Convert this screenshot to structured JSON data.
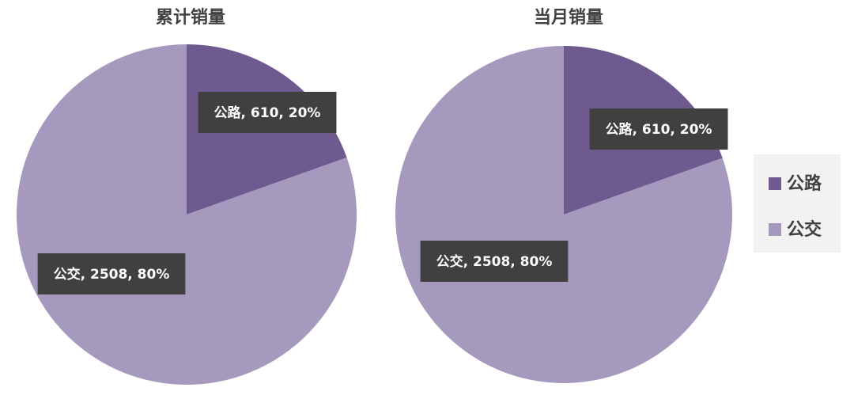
{
  "chart_data": [
    {
      "type": "pie",
      "title": "累计销量",
      "categories": [
        "公路",
        "公交"
      ],
      "values": [
        610,
        2508
      ],
      "value_labels": [
        "公路, 610, 20%",
        "公交, 2508, 80%"
      ],
      "colors": [
        "#6e5a8f",
        "#a699be"
      ],
      "legend": "right"
    },
    {
      "type": "pie",
      "title": "当月销量",
      "categories": [
        "公路",
        "公交"
      ],
      "values": [
        610,
        2508
      ],
      "value_labels": [
        "公路, 610, 20%",
        "公交, 2508, 80%"
      ],
      "colors": [
        "#6e5a8f",
        "#a699be"
      ],
      "legend": "right"
    }
  ]
}
